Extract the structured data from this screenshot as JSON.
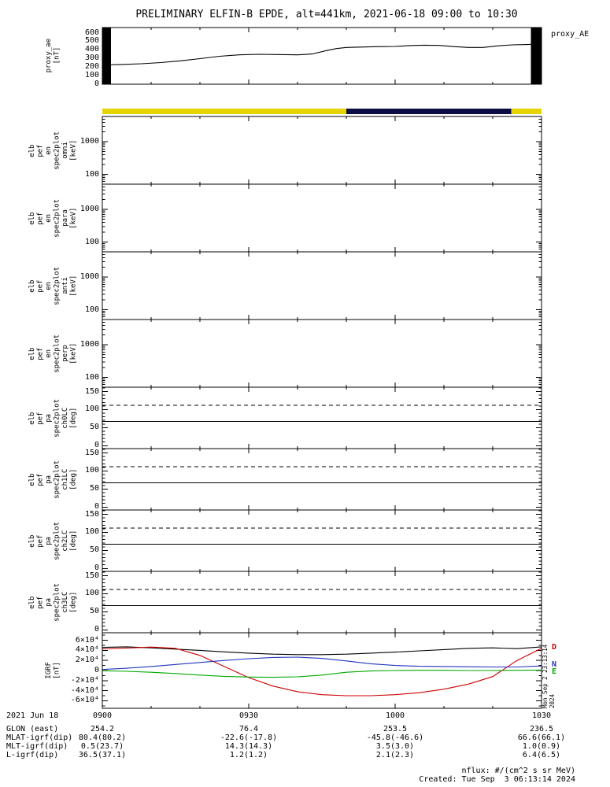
{
  "title": "PRELIMINARY ELFIN-B EPDE, alt=441km, 2021-06-18 09:00 to 10:30",
  "colors": {
    "black": "#000000",
    "yellow": "#e6d400",
    "navy": "#0d0d45",
    "red": "#cc0000",
    "blue": "#2233bb",
    "green": "#00a800"
  },
  "time_axis": {
    "date_label": "2021 Jun 18",
    "tick_labels": [
      "0900",
      "0930",
      "1000",
      "1030"
    ],
    "tick_minutes": [
      0,
      30,
      60,
      90
    ],
    "total_minutes": 90
  },
  "annotation_rows": [
    {
      "label": "GLON (east)",
      "values": [
        "254.2",
        "76.4",
        "253.5",
        "236.5"
      ]
    },
    {
      "label": "MLAT-igrf(dip)",
      "values": [
        "80.4(80.2)",
        "-22.6(-17.8)",
        "-45.8(-46.6)",
        "66.6(66.1)"
      ]
    },
    {
      "label": "MLT-igrf(dip)",
      "values": [
        "0.5(23.7)",
        "14.3(14.3)",
        "3.5(3.0)",
        "1.0(0.9)"
      ]
    },
    {
      "label": "L-igrf(dip)",
      "values": [
        "36.5(37.1)",
        "1.2(1.2)",
        "2.1(2.3)",
        "6.4(6.5)"
      ]
    }
  ],
  "footer": {
    "nflux": "nflux: #/(cm^2 s sr MeV)",
    "created": "Created: Tue Sep  3 06:13:14 2024"
  },
  "side_timestamp": "Mon Sep  2 23:13:14 2024",
  "chart_data": [
    {
      "type": "line",
      "id": "proxy_ae",
      "title": "proxy_AE",
      "right_label": "proxy_AE",
      "ylabel": "proxy_ae\n[nT]",
      "ylim": [
        0,
        660
      ],
      "minor_step": 50,
      "yticks": {
        "values": [
          600,
          500,
          400,
          300,
          200,
          100,
          0
        ],
        "labels": [
          "600",
          "500",
          "400",
          "300",
          "200",
          "100",
          "0"
        ]
      },
      "color_key": "black",
      "x_minutes": [
        0,
        4,
        8,
        12,
        16,
        20,
        24,
        28,
        32,
        36,
        40,
        43,
        46,
        48,
        50,
        53,
        56,
        60,
        63,
        66,
        69,
        72,
        75,
        78,
        81,
        84,
        87,
        90
      ],
      "values": [
        225,
        230,
        238,
        252,
        272,
        298,
        325,
        342,
        348,
        346,
        342,
        352,
        392,
        415,
        428,
        433,
        437,
        440,
        450,
        455,
        452,
        438,
        428,
        428,
        446,
        458,
        462,
        468
      ],
      "nodata_bars": [
        [
          0,
          1.8
        ],
        [
          87.8,
          90
        ]
      ]
    },
    {
      "type": "strip",
      "id": "survey_mode_bar",
      "segments": [
        {
          "from_min": 0,
          "to_min": 50,
          "color_key": "yellow"
        },
        {
          "from_min": 50,
          "to_min": 83.8,
          "color_key": "navy"
        },
        {
          "from_min": 83.8,
          "to_min": 90,
          "color_key": "yellow"
        }
      ]
    },
    {
      "type": "spectrogram",
      "id": "elb_pef_en_spec2plot_omni",
      "ylabel": "elb\npef\nen\nspec2plot\nomni\n[keV]",
      "scale": "log",
      "ylim": [
        50,
        6000
      ],
      "yticks": {
        "values": [
          1000,
          100
        ],
        "labels": [
          "1000",
          "100"
        ]
      },
      "values": []
    },
    {
      "type": "spectrogram",
      "id": "elb_pef_en_spec2plot_para",
      "ylabel": "elb\npef\nen\nspec2plot\npara\n[keV]",
      "scale": "log",
      "ylim": [
        50,
        6000
      ],
      "yticks": {
        "values": [
          1000,
          100
        ],
        "labels": [
          "1000",
          "100"
        ]
      },
      "values": []
    },
    {
      "type": "spectrogram",
      "id": "elb_pef_en_spec2plot_anti",
      "ylabel": "elb\npef\nen\nspec2plot\nanti\n[keV]",
      "scale": "log",
      "ylim": [
        50,
        6000
      ],
      "yticks": {
        "values": [
          1000,
          100
        ],
        "labels": [
          "1000",
          "100"
        ]
      },
      "values": []
    },
    {
      "type": "spectrogram",
      "id": "elb_pef_en_spec2plot_perp",
      "ylabel": "elb\npef\nen\nspec2plot\nperp\n[keV]",
      "scale": "log",
      "ylim": [
        50,
        6000
      ],
      "yticks": {
        "values": [
          1000,
          100
        ],
        "labels": [
          "1000",
          "100"
        ]
      },
      "values": []
    },
    {
      "type": "hlines",
      "id": "elb_pef_pa_spec2plot_ch0LC",
      "ylabel": "elb\npef\npa\nspec2plot\nch0LC\n[deg]",
      "ylim": [
        -8,
        162
      ],
      "minor_step": 10,
      "yticks": {
        "values": [
          150,
          100,
          50,
          0
        ],
        "labels": [
          "150",
          "100",
          "50",
          "0"
        ]
      },
      "hlines": [
        {
          "value": 112,
          "style": "dashed"
        },
        {
          "value": 67,
          "style": "solid"
        }
      ]
    },
    {
      "type": "hlines",
      "id": "elb_pef_pa_spec2plot_ch1LC",
      "ylabel": "elb\npef\npa\nspec2plot\nch1LC\n[deg]",
      "ylim": [
        -8,
        162
      ],
      "minor_step": 10,
      "yticks": {
        "values": [
          150,
          100,
          50,
          0
        ],
        "labels": [
          "150",
          "100",
          "50",
          "0"
        ]
      },
      "hlines": [
        {
          "value": 112,
          "style": "dashed"
        },
        {
          "value": 67,
          "style": "solid"
        }
      ]
    },
    {
      "type": "hlines",
      "id": "elb_pef_pa_spec2plot_ch2LC",
      "ylabel": "elb\npef\npa\nspec2plot\nch2LC\n[deg]",
      "ylim": [
        -8,
        162
      ],
      "minor_step": 10,
      "yticks": {
        "values": [
          150,
          100,
          50,
          0
        ],
        "labels": [
          "150",
          "100",
          "50",
          "0"
        ]
      },
      "hlines": [
        {
          "value": 112,
          "style": "dashed"
        },
        {
          "value": 67,
          "style": "solid"
        }
      ]
    },
    {
      "type": "hlines",
      "id": "elb_pef_pa_spec2plot_ch3LC",
      "ylabel": "elb\npef\npa\nspec2plot\nch3LC\n[deg]",
      "ylim": [
        -8,
        162
      ],
      "minor_step": 10,
      "yticks": {
        "values": [
          150,
          100,
          50,
          0
        ],
        "labels": [
          "150",
          "100",
          "50",
          "0"
        ]
      },
      "hlines": [
        {
          "value": 112,
          "style": "dashed"
        },
        {
          "value": 67,
          "style": "solid"
        }
      ]
    },
    {
      "type": "multiline",
      "id": "igrf",
      "ylabel": "IGRF\n[nT]",
      "ylim": [
        -75000,
        75000
      ],
      "minor_step": 10000,
      "yticks": {
        "values": [
          60000,
          40000,
          20000,
          0,
          -20000,
          -40000,
          -60000
        ],
        "labels": [
          "6×10⁴",
          "4×10⁴",
          "2×10⁴",
          "0",
          "-2×10⁴",
          "-4×10⁴",
          "-6×10⁴"
        ]
      },
      "x_minutes": [
        0,
        5,
        10,
        15,
        20,
        25,
        30,
        35,
        40,
        45,
        50,
        55,
        60,
        65,
        70,
        75,
        80,
        85,
        90
      ],
      "series": [
        {
          "name": "B",
          "color_key": "black",
          "values": [
            46000,
            47000,
            45000,
            42500,
            40000,
            37000,
            34500,
            32500,
            31500,
            31500,
            32500,
            34500,
            36500,
            39000,
            41500,
            44000,
            45000,
            43500,
            47000
          ]
        },
        {
          "name": "D",
          "color_key": "red",
          "values": [
            43000,
            44500,
            46500,
            44000,
            30000,
            8000,
            -14000,
            -31000,
            -42000,
            -48000,
            -50000,
            -50000,
            -48000,
            -44000,
            -37000,
            -27000,
            -12000,
            20000,
            44000
          ]
        },
        {
          "name": "N",
          "color_key": "blue",
          "values": [
            2000,
            4500,
            8000,
            12000,
            16000,
            20000,
            23500,
            26000,
            26500,
            24000,
            19000,
            13500,
            10000,
            8500,
            8000,
            7500,
            7000,
            7000,
            9000
          ]
        },
        {
          "name": "E",
          "color_key": "green",
          "values": [
            -500,
            -1500,
            -3500,
            -6000,
            -9000,
            -11500,
            -13000,
            -13500,
            -12500,
            -9000,
            -3500,
            -1000,
            0,
            500,
            500,
            0,
            0,
            500,
            1000
          ]
        }
      ],
      "line_labels": [
        {
          "text": "D",
          "color_key": "red",
          "at_value": 44000
        },
        {
          "text": "N",
          "color_key": "blue",
          "at_value": 9000
        },
        {
          "text": "E",
          "color_key": "green",
          "at_value": -4000
        }
      ]
    }
  ]
}
